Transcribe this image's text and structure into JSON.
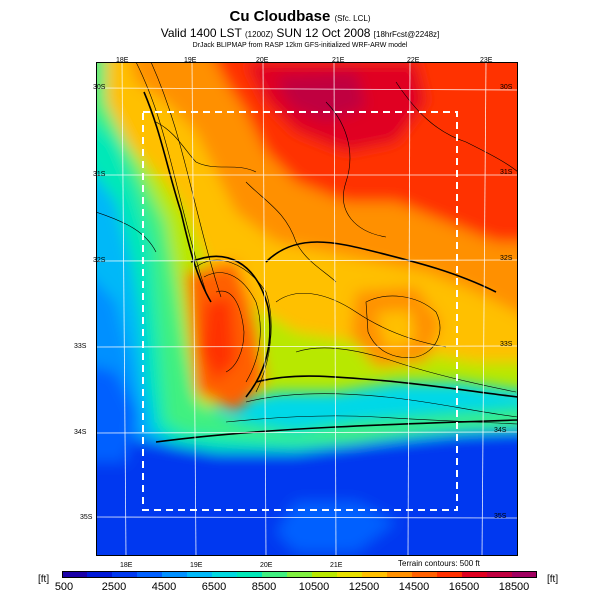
{
  "header": {
    "title": "Cu Cloudbase",
    "title_suffix": "(Sfc. LCL)",
    "valid_line": "Valid 1400 LST",
    "valid_code": "(1200Z)",
    "valid_date": "SUN 12 Oct 2008",
    "valid_forecast": "[18hrFcst@2248z]",
    "credit": "DrJack BLIPMAP from RASP 12km GFS-initialized WRF-ARW model"
  },
  "map": {
    "longitude_labels_top": [
      "18E",
      "19E",
      "20E",
      "21E",
      "22E",
      "23E"
    ],
    "longitude_labels_bottom": [
      "18E",
      "19E",
      "20E",
      "21E"
    ],
    "latitude_labels_left": [
      "30S",
      "31S",
      "32S",
      "33S",
      "34S",
      "35S"
    ],
    "latitude_labels_right": [
      "30S",
      "31S",
      "32S",
      "33S",
      "34S",
      "35S"
    ],
    "terrain_note": "Terrain contours: 500 ft"
  },
  "colorbar": {
    "unit_left": "[ft]",
    "unit_right": "[ft]",
    "ticks": [
      "500",
      "2500",
      "4500",
      "6500",
      "8500",
      "10500",
      "12500",
      "14500",
      "16500",
      "18500"
    ],
    "range": [
      500,
      19500
    ],
    "step": 500,
    "colors": [
      "#1a00a8",
      "#0018d8",
      "#0038f0",
      "#0060ff",
      "#0090ff",
      "#00b8f8",
      "#00d8e0",
      "#00e8b8",
      "#40f080",
      "#80f040",
      "#b8e800",
      "#e8e000",
      "#ffc000",
      "#ff9000",
      "#ff6000",
      "#ff3000",
      "#e00020",
      "#c00040",
      "#a00060"
    ]
  }
}
